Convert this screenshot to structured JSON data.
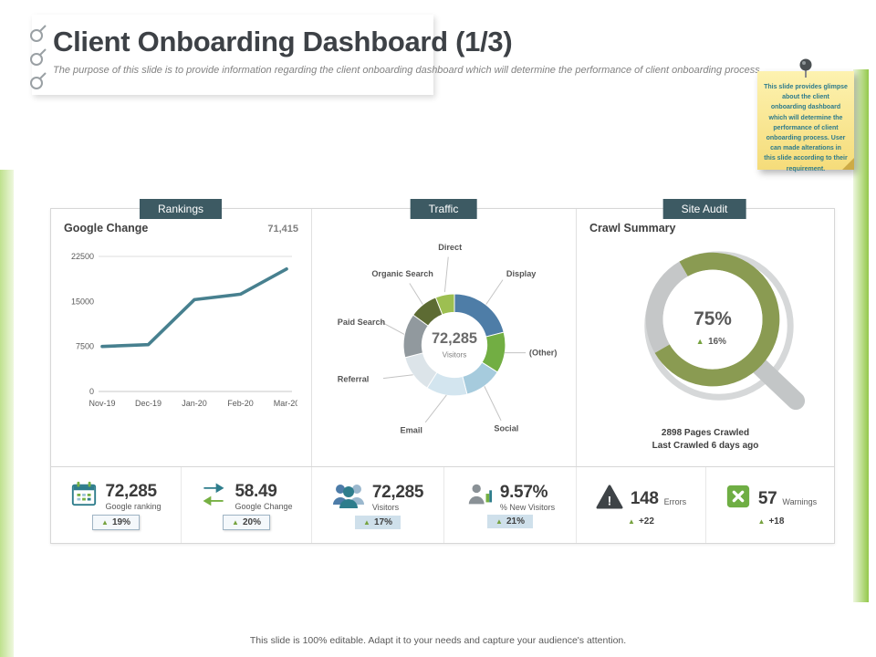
{
  "header": {
    "title": "Client Onboarding Dashboard (1/3)",
    "subtitle": "The purpose of this slide is to provide information regarding the client onboarding dashboard which will determine the performance of client onboarding process."
  },
  "sticky_note": {
    "text": "This slide provides glimpse about the client onboarding dashboard which will determine the performance of client onboarding process. User can made alterations in this slide according to their requirement."
  },
  "tabs": [
    {
      "label": "Rankings"
    },
    {
      "label": "Traffic"
    },
    {
      "label": "Site Audit"
    }
  ],
  "site_audit": {
    "title": "Crawl Summary",
    "pages_crawled": "2898 Pages Crawled",
    "last_crawled": "Last Crawled 6 days ago"
  },
  "chart_data": [
    {
      "id": "rankings_line",
      "type": "line",
      "title": "Google Change",
      "annotation": "71,415",
      "categories": [
        "Nov-19",
        "Dec-19",
        "Jan-20",
        "Feb-20",
        "Mar-20"
      ],
      "values": [
        7500,
        7800,
        15300,
        16200,
        20400
      ],
      "yticks": [
        22500,
        15000,
        7500,
        0
      ],
      "ylim": [
        0,
        22500
      ],
      "line_color": "#47808F",
      "grid": "top line and baseline only",
      "legend": "none"
    },
    {
      "id": "traffic_donut",
      "type": "pie",
      "title": "Traffic",
      "center_value": "72,285",
      "center_label": "Visitors",
      "segments": [
        {
          "label": "Display",
          "value": 21,
          "color": "#4E7DA7"
        },
        {
          "label": "(Other)",
          "value": 13,
          "color": "#72AE43"
        },
        {
          "label": "Social",
          "value": 12,
          "color": "#A6CBDD"
        },
        {
          "label": "Email",
          "value": 13,
          "color": "#D3E5EF"
        },
        {
          "label": "Referral",
          "value": 12,
          "color": "#DCE4E9"
        },
        {
          "label": "Paid Search",
          "value": 14,
          "color": "#91999E"
        },
        {
          "label": "Organic Search",
          "value": 9,
          "color": "#5D6B33"
        },
        {
          "label": "Direct",
          "value": 6,
          "color": "#9DBF51"
        }
      ]
    },
    {
      "id": "site_audit_ring",
      "type": "pie",
      "title": "Crawl Summary",
      "center_value": "75%",
      "center_delta": "16%",
      "start_angle_deg": 330,
      "segments": [
        {
          "label": "Crawled",
          "value": 75,
          "color": "#8A9B52"
        },
        {
          "label": "Remaining",
          "value": 25,
          "color": "#C5C7C8"
        }
      ]
    }
  ],
  "kpis": [
    {
      "icon": "calendar-icon",
      "value": "72,285",
      "label": "Google ranking",
      "delta": "19%"
    },
    {
      "icon": "sync-arrows-icon",
      "value": "58.49",
      "label": "Google Change",
      "delta": "20%"
    },
    {
      "icon": "people-icon",
      "value": "72,285",
      "label": "Visitors",
      "delta": "17%"
    },
    {
      "icon": "person-icon",
      "value": "9.57%",
      "label": "% New Visitors",
      "delta": "21%"
    },
    {
      "icon": "warning-icon",
      "value": "148",
      "label": "Errors",
      "delta": "+22"
    },
    {
      "icon": "box-x-icon",
      "value": "57",
      "label": "Warnings",
      "delta": "+18"
    }
  ],
  "colors": {
    "accent_green": "#8DC63F",
    "tab_background": "#3D5A63",
    "line_chart": "#47808F",
    "audit_green": "#8A9B52",
    "audit_gray": "#C5C7C8"
  },
  "footer": "This slide is 100% editable. Adapt it to your needs and capture your audience's attention."
}
